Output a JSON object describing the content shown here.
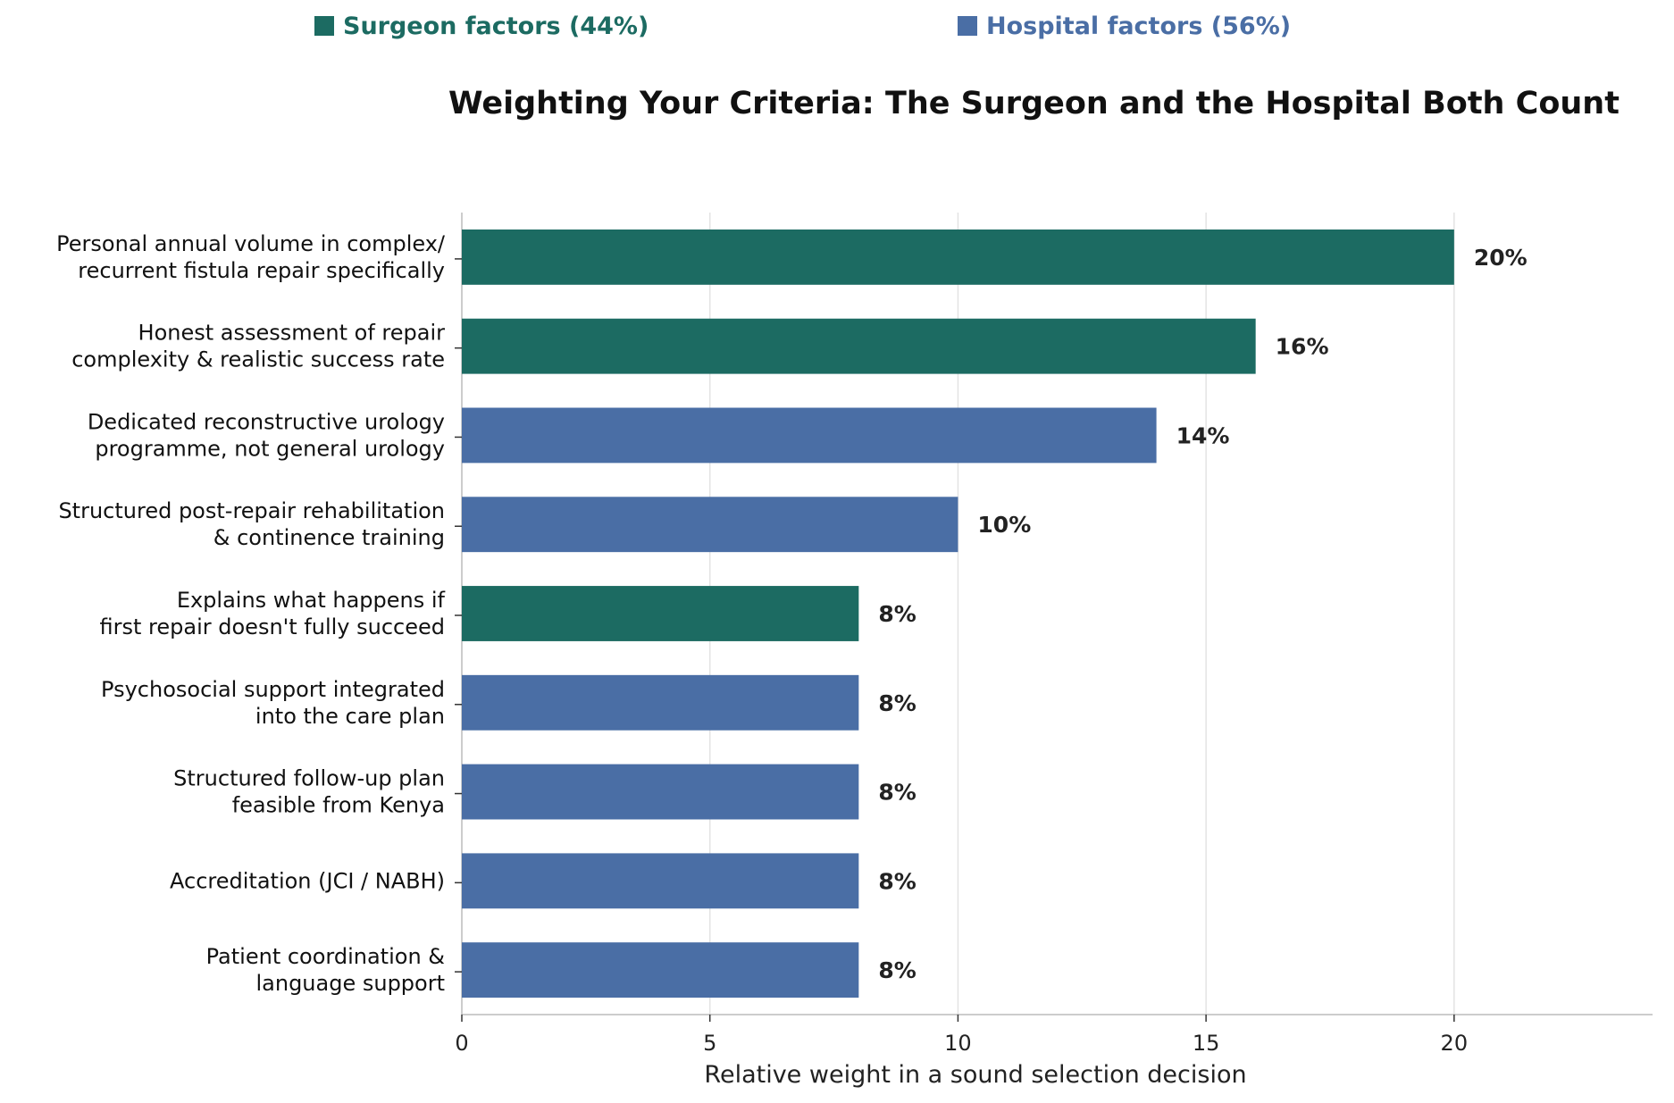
{
  "legend": {
    "surgeon": {
      "label": "Surgeon factors (44%)",
      "color": "#1c6b62"
    },
    "hospital": {
      "label": "Hospital factors (56%)",
      "color": "#4a6ea5"
    }
  },
  "chart_data": {
    "type": "bar",
    "orientation": "horizontal",
    "title": "Weighting Your Criteria: The Surgeon and the Hospital Both Count",
    "xlabel": "Relative weight in a sound selection decision",
    "ylabel": "",
    "xlim": [
      0,
      24
    ],
    "xticks": [
      0,
      5,
      10,
      15,
      20
    ],
    "grid": "vertical",
    "legend_position": "top",
    "categories": [
      [
        "Personal annual volume in complex/",
        "recurrent fistula repair specifically"
      ],
      [
        "Honest assessment of repair",
        "complexity & realistic success rate"
      ],
      [
        "Dedicated reconstructive urology",
        "programme, not general urology"
      ],
      [
        "Structured post-repair rehabilitation",
        "& continence training"
      ],
      [
        "Explains what happens if",
        "first repair doesn't fully succeed"
      ],
      [
        "Psychosocial support integrated",
        "into the care plan"
      ],
      [
        "Structured follow-up plan",
        "feasible from Kenya"
      ],
      [
        "Accreditation (JCI / NABH)"
      ],
      [
        "Patient coordination &",
        "language support"
      ]
    ],
    "values": [
      20,
      16,
      14,
      10,
      8,
      8,
      8,
      8,
      8
    ],
    "data_labels": [
      "20%",
      "16%",
      "14%",
      "10%",
      "8%",
      "8%",
      "8%",
      "8%",
      "8%"
    ],
    "groups": [
      "surgeon",
      "surgeon",
      "hospital",
      "hospital",
      "surgeon",
      "hospital",
      "hospital",
      "hospital",
      "hospital"
    ]
  }
}
